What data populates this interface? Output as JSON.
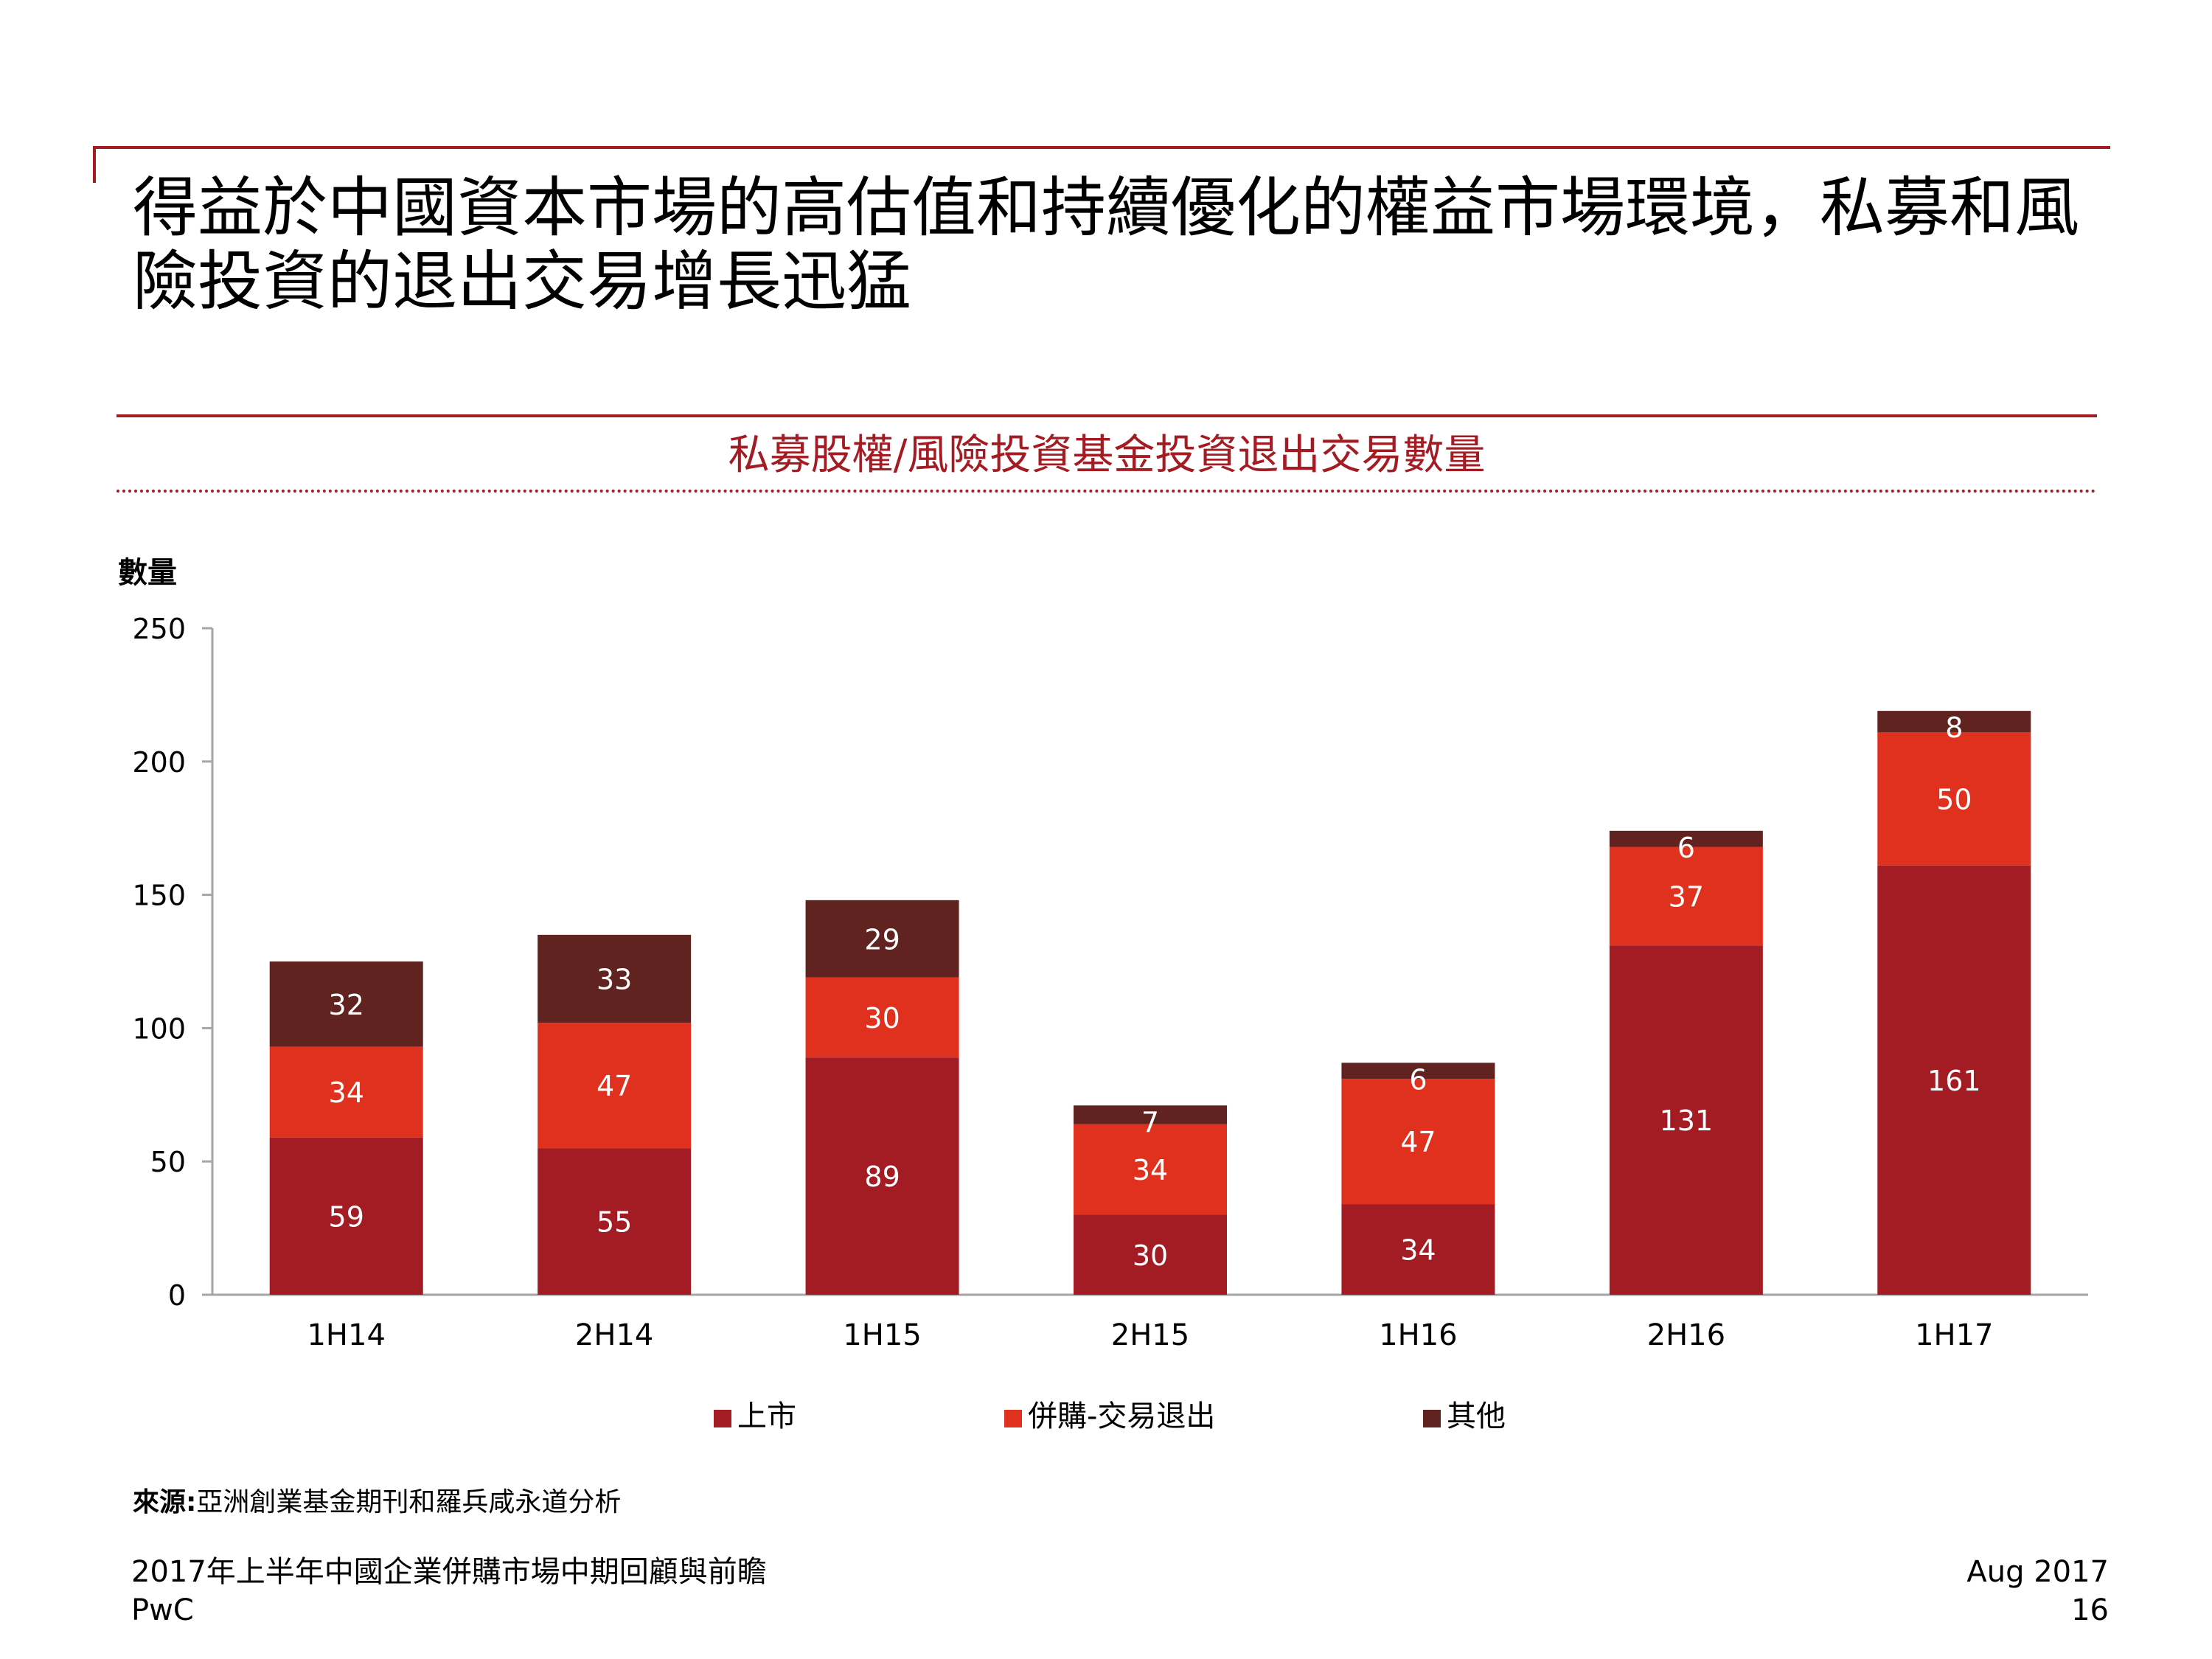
{
  "slide": {
    "title": "得益於中國資本市場的高估值和持續優化的權益市場環境，私募和風險投資的退出交易增長迅猛"
  },
  "chart_title": "私募股權/風險投資基金投資退出交易數量",
  "colors": {
    "listing": "#a31c24",
    "ma_exit": "#e0301e",
    "other": "#602320",
    "rule": "#a31c24",
    "axis": "#a6a6a6"
  },
  "chart_data": {
    "type": "bar",
    "stacked": true,
    "ylabel": "數量",
    "ylim": [
      0,
      250
    ],
    "yticks": [
      0,
      50,
      100,
      150,
      200,
      250
    ],
    "categories": [
      "1H14",
      "2H14",
      "1H15",
      "2H15",
      "1H16",
      "2H16",
      "1H17"
    ],
    "series": [
      {
        "name": "上市",
        "values": [
          59,
          55,
          89,
          30,
          34,
          131,
          161
        ]
      },
      {
        "name": "併購-交易退出",
        "values": [
          34,
          47,
          30,
          34,
          47,
          37,
          50
        ]
      },
      {
        "name": "其他",
        "values": [
          32,
          33,
          29,
          7,
          6,
          6,
          8
        ]
      }
    ],
    "legend_position": "bottom"
  },
  "source": {
    "label": "來源:",
    "text": "亞洲創業基金期刊和羅兵咸永道分析"
  },
  "footer": {
    "report_title": "2017年上半年中國企業併購市場中期回顧與前瞻",
    "company": "PwC",
    "date": "Aug 2017",
    "page_number": "16"
  }
}
